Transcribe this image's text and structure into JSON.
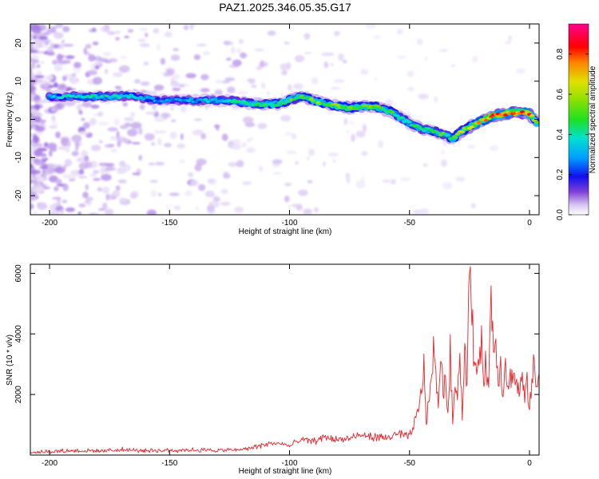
{
  "title": "PAZ1.2025.346.05.35.G17",
  "colors": {
    "snr_line": "#e8242a",
    "axis": "#000000",
    "colormap": [
      "#d9c8f2",
      "#b48ae8",
      "#8040d8",
      "#4a1ad0",
      "#1010f0",
      "#00a0ff",
      "#00e0d0",
      "#20e020",
      "#e0e000",
      "#ff8000",
      "#ff0000",
      "#ff00a0"
    ]
  },
  "chart_data": [
    {
      "type": "heatmap",
      "title": "",
      "xlabel": "Height of straight line (km)",
      "ylabel": "Frequency (Hz)",
      "xlim": [
        -208,
        4
      ],
      "ylim": [
        -25,
        25
      ],
      "xticks": [
        -200,
        -150,
        -100,
        -50,
        0
      ],
      "yticks": [
        -20,
        -10,
        0,
        10,
        20
      ],
      "colorbar": {
        "label": "Normalized spectral amplitude",
        "range": [
          0,
          0.95
        ],
        "ticks": [
          0.0,
          0.2,
          0.4,
          0.6,
          0.8
        ]
      },
      "ridge": {
        "x": [
          -200,
          -185,
          -175,
          -165,
          -155,
          -145,
          -135,
          -125,
          -115,
          -105,
          -95,
          -85,
          -75,
          -65,
          -58,
          -50,
          -45,
          -40,
          -32,
          -28,
          -22,
          -15,
          -10,
          -5,
          0,
          3
        ],
        "freq": [
          6,
          6,
          6,
          6,
          5,
          5,
          5,
          5,
          4,
          4,
          6,
          4,
          3,
          3.5,
          2,
          -1,
          -2.5,
          -3,
          -5,
          -3,
          -1,
          1,
          1.5,
          2,
          1.5,
          -1
        ],
        "amplitude": [
          0.35,
          0.4,
          0.4,
          0.35,
          0.3,
          0.3,
          0.35,
          0.4,
          0.45,
          0.5,
          0.55,
          0.55,
          0.6,
          0.55,
          0.5,
          0.45,
          0.45,
          0.5,
          0.5,
          0.6,
          0.7,
          0.8,
          0.9,
          0.85,
          0.9,
          0.5
        ]
      }
    },
    {
      "type": "line",
      "title": "",
      "xlabel": "Height of straight line (km)",
      "ylabel": "SNR (10 * v/v)",
      "xlim": [
        -208,
        4
      ],
      "ylim": [
        0,
        6300
      ],
      "xticks": [
        -200,
        -150,
        -100,
        -50,
        0
      ],
      "yticks": [
        2000,
        4000,
        6000
      ],
      "series": [
        {
          "name": "SNR",
          "x": [
            -208,
            -200,
            -190,
            -180,
            -170,
            -160,
            -150,
            -140,
            -130,
            -120,
            -115,
            -110,
            -105,
            -100,
            -95,
            -90,
            -85,
            -80,
            -75,
            -70,
            -65,
            -60,
            -55,
            -50,
            -46,
            -44,
            -43,
            -42,
            -40,
            -38,
            -37,
            -36,
            -35,
            -34,
            -33,
            -32,
            -31,
            -30,
            -29,
            -28,
            -27,
            -26,
            -25,
            -24,
            -23,
            -22,
            -21,
            -20,
            -19,
            -18,
            -17,
            -16,
            -15,
            -14,
            -13,
            -12,
            -11,
            -10,
            -9,
            -8,
            -7,
            -6,
            -5,
            -4,
            -3,
            -2,
            -1,
            0,
            1,
            2,
            3,
            4
          ],
          "values": [
            100,
            120,
            150,
            130,
            180,
            140,
            160,
            170,
            150,
            180,
            250,
            350,
            400,
            300,
            500,
            450,
            600,
            500,
            550,
            650,
            600,
            550,
            700,
            600,
            1500,
            2900,
            1200,
            1600,
            3500,
            1500,
            3700,
            1900,
            2800,
            1200,
            3400,
            1000,
            2600,
            2100,
            3300,
            1300,
            3600,
            2200,
            6300,
            4800,
            2800,
            3200,
            2500,
            4100,
            2600,
            3100,
            2200,
            5400,
            3400,
            3900,
            2500,
            3000,
            2000,
            3300,
            2100,
            2500,
            2800,
            2400,
            2200,
            2100,
            2600,
            1800,
            2300,
            1600,
            2500,
            3000,
            2000,
            2700
          ]
        }
      ]
    }
  ]
}
